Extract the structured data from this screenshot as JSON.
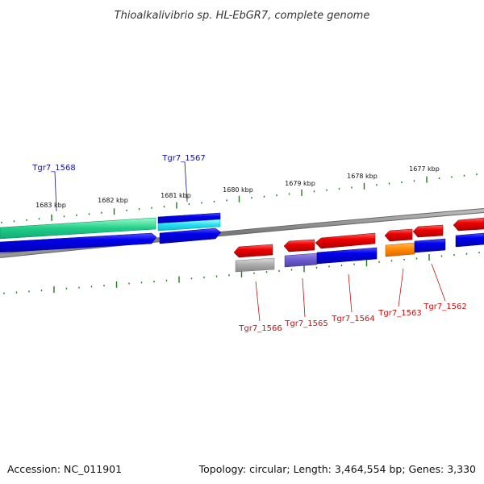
{
  "title": "Thioalkalivibrio sp. HL-EbGR7, complete genome",
  "footer": {
    "accession": "Accession: NC_011901",
    "summary": "Topology: circular; Length: 3,464,554 bp; Genes: 3,330"
  },
  "scale_labels": [
    "1683 kbp",
    "1682 kbp",
    "1681 kbp",
    "1680 kbp",
    "1679 kbp",
    "1678 kbp",
    "1677 kbp"
  ],
  "gene_labels": [
    {
      "text": "Tgr7_1568",
      "color": "#1010a0"
    },
    {
      "text": "Tgr7_1567",
      "color": "#1010a0"
    },
    {
      "text": "Tgr7_1566",
      "color": "#cc1010"
    },
    {
      "text": "Tgr7_1565",
      "color": "#cc1010"
    },
    {
      "text": "Tgr7_1564",
      "color": "#cc1010"
    },
    {
      "text": "Tgr7_1563",
      "color": "#cc1010"
    },
    {
      "text": "Tgr7_1562",
      "color": "#cc1010"
    }
  ],
  "colors": {
    "tick": "#1a7a1a",
    "backbone": "#888888",
    "forward_gene": "#e00000",
    "cds_blue": "#0000dd",
    "cds_green": "#22cc88",
    "cds_cyan": "#22ddee",
    "cds_gray": "#aaaaaa",
    "cds_slate": "#6a5acd",
    "cds_orange": "#ff8800"
  }
}
